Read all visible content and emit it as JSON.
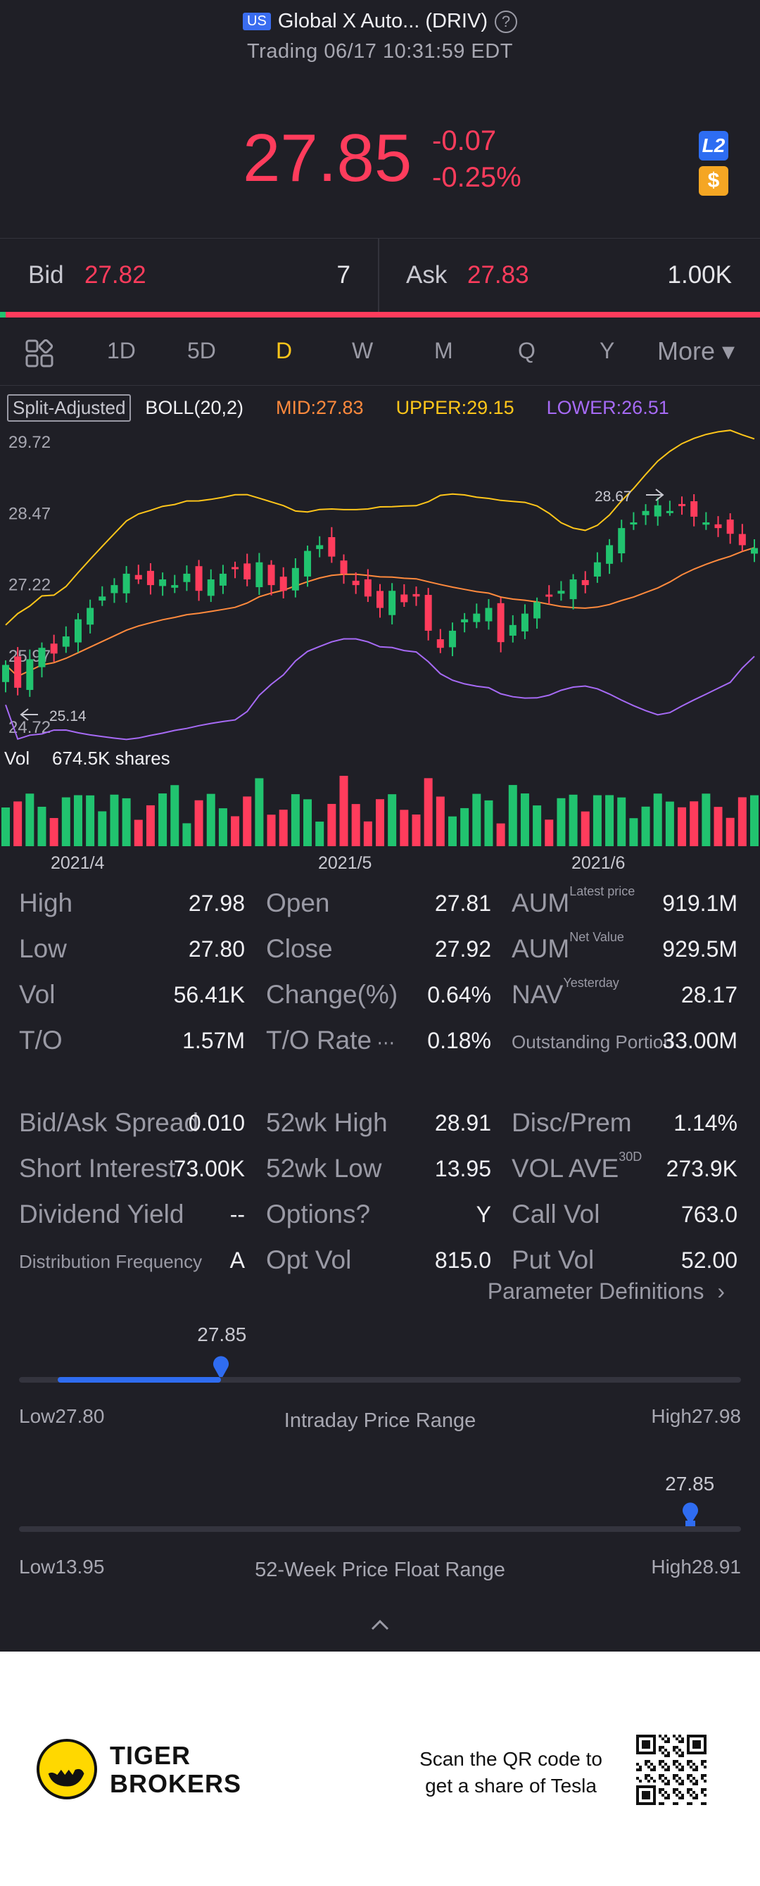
{
  "header": {
    "market_badge": "US",
    "title": "Global X Auto... (DRIV)",
    "help_glyph": "?",
    "subtitle": "Trading 06/17 10:31:59 EDT"
  },
  "quote": {
    "price": "27.85",
    "change": "-0.07",
    "change_pct": "-0.25%",
    "l2_badge": "L2",
    "dollar_badge": "$"
  },
  "bidask": {
    "bid_label": "Bid",
    "bid_price": "27.82",
    "bid_size": "7",
    "ask_label": "Ask",
    "ask_price": "27.83",
    "ask_size": "1.00K"
  },
  "tabs": [
    "1D",
    "5D",
    "D",
    "W",
    "M",
    "Q",
    "Y",
    "More ▾"
  ],
  "active_tab": "D",
  "chart_legend": {
    "split": "Split-Adjusted",
    "boll": "BOLL(20,2)",
    "mid": "MID:27.83",
    "upper": "UPPER:29.15",
    "lower": "LOWER:26.51"
  },
  "colors": {
    "up": "#21c36f",
    "down": "#ff3c5c",
    "mid": "#ff8a3d",
    "upper": "#ffc61a",
    "lower": "#a66af5",
    "accent": "#2f6cf0"
  },
  "chart_data": {
    "type": "candlestick",
    "y_ticks": [
      "29.72",
      "28.47",
      "27.22",
      "25.97",
      "24.72"
    ],
    "ylim": [
      24.72,
      29.72
    ],
    "x_ticks": [
      "2021/4",
      "2021/5",
      "2021/6"
    ],
    "annotations": {
      "high_mark": "28.67",
      "low_mark": "25.14"
    },
    "vol_label": "Vol",
    "vol_value": "674.5K shares"
  },
  "stats": [
    [
      {
        "label": "High",
        "value": "27.98"
      },
      {
        "label": "Open",
        "value": "27.81"
      },
      {
        "label": "AUM",
        "sup": "Latest price",
        "value": "919.1M"
      }
    ],
    [
      {
        "label": "Low",
        "value": "27.80"
      },
      {
        "label": "Close",
        "value": "27.92"
      },
      {
        "label": "AUM",
        "sup": "Net Value",
        "value": "929.5M"
      }
    ],
    [
      {
        "label": "Vol",
        "value": "56.41K"
      },
      {
        "label": "Change(%)",
        "value": "0.64%"
      },
      {
        "label": "NAV",
        "sup": "Yesterday",
        "value": "28.17"
      }
    ],
    [
      {
        "label": "T/O",
        "value": "1.57M"
      },
      {
        "label": "T/O Rate",
        "value": "0.18%"
      },
      {
        "label": "Outstanding Portion",
        "value": "33.00M"
      }
    ]
  ],
  "stats2": [
    [
      {
        "label": "Bid/Ask Spread",
        "value": "0.010"
      },
      {
        "label": "52wk High",
        "value": "28.91"
      },
      {
        "label": "Disc/Prem",
        "value": "1.14%"
      }
    ],
    [
      {
        "label": "Short Interest",
        "value": "73.00K"
      },
      {
        "label": "52wk Low",
        "value": "13.95"
      },
      {
        "label": "VOL AVE",
        "sup": "30D",
        "value": "273.9K"
      }
    ],
    [
      {
        "label": "Dividend Yield",
        "value": "--"
      },
      {
        "label": "Options?",
        "value": "Y"
      },
      {
        "label": "Call Vol",
        "value": "763.0"
      }
    ],
    [
      {
        "label": "Distribution Frequency",
        "value": "A"
      },
      {
        "label": "Opt Vol",
        "value": "815.0"
      },
      {
        "label": "Put Vol",
        "value": "52.00"
      }
    ]
  ],
  "param_link": "Parameter Definitions",
  "intraday": {
    "marker": "27.85",
    "low": "Low27.80",
    "high": "High27.98",
    "title": "Intraday Price Range",
    "position": 0.28
  },
  "week52": {
    "marker": "27.85",
    "low": "Low13.95",
    "high": "High28.91",
    "title": "52-Week Price Float Range",
    "position": 0.93
  },
  "footer": {
    "brand_line1": "TIGER",
    "brand_line2": "BROKERS",
    "scan_line1": "Scan the QR code to",
    "scan_line2": "get a share of Tesla"
  }
}
